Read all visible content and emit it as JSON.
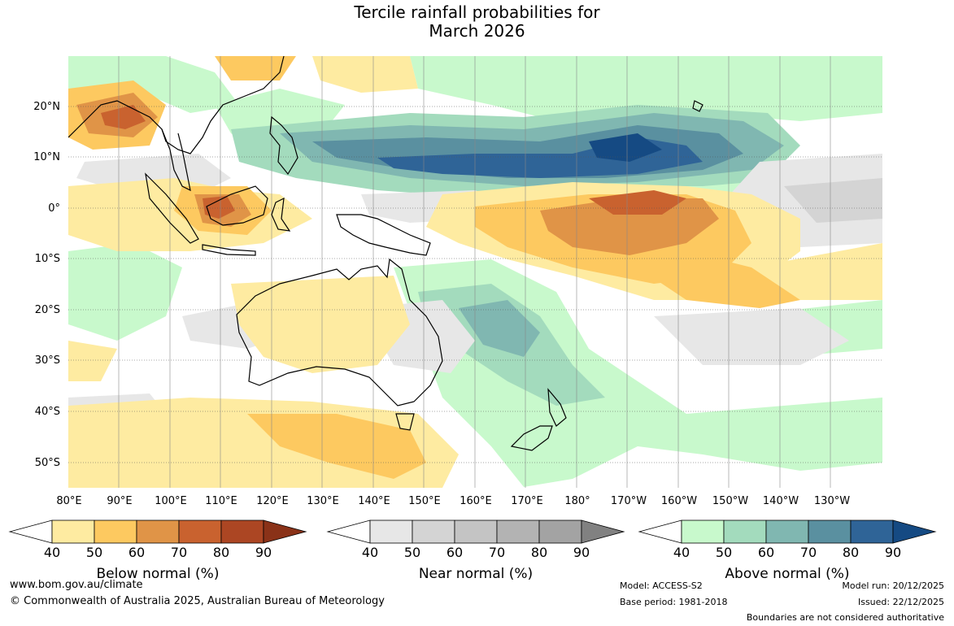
{
  "title": {
    "line1": "Tercile rainfall probabilities for",
    "line2": "March 2026"
  },
  "map": {
    "lat_labels": [
      "20°N",
      "10°N",
      "0°",
      "10°S",
      "20°S",
      "30°S",
      "40°S",
      "50°S"
    ],
    "lon_labels": [
      "80°E",
      "90°E",
      "100°E",
      "110°E",
      "120°E",
      "130°E",
      "140°E",
      "150°E",
      "160°E",
      "170°E",
      "180°",
      "170°W",
      "160°W",
      "150°W",
      "140°W",
      "130°W"
    ]
  },
  "colorbars": [
    {
      "name": "below",
      "title": "Below normal (%)",
      "ticks": [
        "40",
        "50",
        "60",
        "70",
        "80",
        "90"
      ],
      "colors": [
        "#ffffff",
        "#feeba1",
        "#fdc960",
        "#e09447",
        "#c9622f",
        "#ac4623",
        "#8a3218"
      ]
    },
    {
      "name": "near",
      "title": "Near normal (%)",
      "ticks": [
        "40",
        "50",
        "60",
        "70",
        "80",
        "90"
      ],
      "colors": [
        "#ffffff",
        "#e7e7e7",
        "#d4d4d4",
        "#c4c4c4",
        "#b3b3b3",
        "#a3a3a3",
        "#818181"
      ]
    },
    {
      "name": "above",
      "title": "Above normal (%)",
      "ticks": [
        "40",
        "50",
        "60",
        "70",
        "80",
        "90"
      ],
      "colors": [
        "#ffffff",
        "#c8f9cc",
        "#a3dbbd",
        "#80b7b1",
        "#5a90a0",
        "#2f6497",
        "#154a83"
      ]
    }
  ],
  "footer": {
    "url": "www.bom.gov.au/climate",
    "copyright": "© Commonwealth of Australia 2025, Australian Bureau of Meteorology",
    "model": "Model: ACCESS-S2",
    "base_period": "Base period: 1981-2018",
    "model_run": "Model run: 20/12/2025",
    "issued": "Issued: 22/12/2025",
    "disclaimer": "Boundaries are not considered authoritative"
  }
}
